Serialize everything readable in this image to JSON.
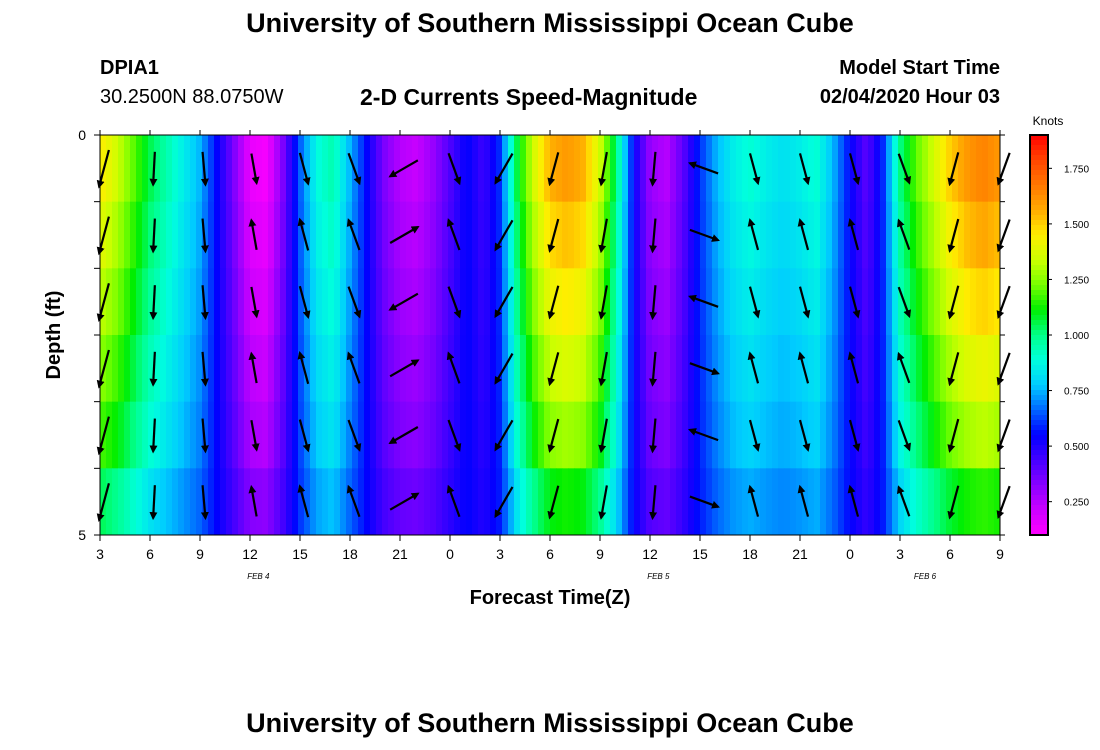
{
  "header": {
    "main_title": "University of Southern Mississippi Ocean Cube",
    "station_id": "DPIA1",
    "station_coords": "30.2500N 88.0750W",
    "chart_title": "2-D Currents Speed-Magnitude",
    "model_start_label": "Model Start Time",
    "model_start_time": "02/04/2020 Hour 03"
  },
  "footer": {
    "main_title": "University of Southern Mississippi Ocean Cube"
  },
  "chart_data": {
    "type": "heatmap",
    "title": "2-D Currents Speed-Magnitude",
    "xlabel": "Forecast Time(Z)",
    "ylabel": "Depth (ft)",
    "x_range_hours": [
      0,
      54
    ],
    "x_tick_labels": [
      "3",
      "6",
      "9",
      "12",
      "15",
      "18",
      "21",
      "0",
      "3",
      "6",
      "9",
      "12",
      "15",
      "18",
      "21",
      "0",
      "3",
      "6",
      "9"
    ],
    "date_labels": [
      {
        "text": "FEB 4",
        "hour": 9.5
      },
      {
        "text": "FEB 5",
        "hour": 33.5
      },
      {
        "text": "FEB 6",
        "hour": 49.5
      }
    ],
    "y_range": [
      0,
      5
    ],
    "y_tick_labels": [
      "0",
      "5"
    ],
    "depth_levels": 5,
    "colorbar": {
      "unit": "Knots",
      "range": [
        0.1,
        1.9
      ],
      "ticks": [
        "0.250",
        "0.500",
        "0.750",
        "1.000",
        "1.250",
        "1.500",
        "1.750"
      ],
      "colors": [
        "#ff00ff",
        "#cc00ff",
        "#8800ff",
        "#4400ff",
        "#0000ff",
        "#0066ff",
        "#00ccff",
        "#00ffdd",
        "#00ff88",
        "#00ee00",
        "#77ff00",
        "#ccff00",
        "#ffee00",
        "#ffaa00",
        "#ff7700",
        "#ff4400",
        "#ff0000"
      ]
    },
    "speed_profile_hour": [
      0,
      1,
      2,
      3,
      4,
      5,
      6,
      7,
      8,
      9,
      10,
      11,
      12,
      13,
      14,
      15,
      16,
      17,
      18,
      19,
      20,
      21,
      22,
      23,
      24,
      25,
      26,
      27,
      28,
      29,
      30,
      31,
      32,
      33,
      34,
      35,
      36,
      37,
      38,
      39,
      40,
      41,
      42,
      43,
      44,
      45,
      46,
      47,
      48,
      49,
      50,
      51,
      52,
      53,
      54
    ],
    "speed_profile_knots": [
      1.45,
      1.35,
      1.2,
      1.05,
      0.95,
      0.85,
      0.75,
      0.55,
      0.35,
      0.15,
      0.12,
      0.35,
      0.65,
      0.88,
      0.95,
      0.75,
      0.55,
      0.35,
      0.25,
      0.22,
      0.3,
      0.42,
      0.55,
      0.45,
      0.6,
      1.05,
      1.35,
      1.55,
      1.6,
      1.55,
      1.35,
      1.0,
      0.55,
      0.3,
      0.25,
      0.4,
      0.6,
      0.75,
      0.85,
      0.9,
      0.85,
      0.82,
      0.85,
      0.9,
      0.75,
      0.55,
      0.4,
      0.6,
      1.0,
      1.2,
      1.35,
      1.5,
      1.6,
      1.65,
      1.6
    ],
    "depth_factor": [
      1.0,
      0.93,
      0.86,
      0.78,
      0.7,
      0.55
    ],
    "vector_hours": [
      0,
      3,
      6,
      9,
      12,
      15,
      18,
      21,
      24,
      27,
      30,
      33,
      36,
      39,
      42,
      45,
      48,
      51,
      54
    ],
    "vector_dirs_deg": [
      -15,
      -3,
      5,
      10,
      15,
      20,
      60,
      20,
      -30,
      -15,
      -10,
      -5,
      110,
      15,
      15,
      15,
      20,
      -15,
      -20
    ],
    "vector_lens": [
      38,
      33,
      33,
      30,
      32,
      32,
      32,
      32,
      34,
      33,
      33,
      33,
      30,
      31,
      31,
      31,
      31,
      33,
      33
    ]
  }
}
